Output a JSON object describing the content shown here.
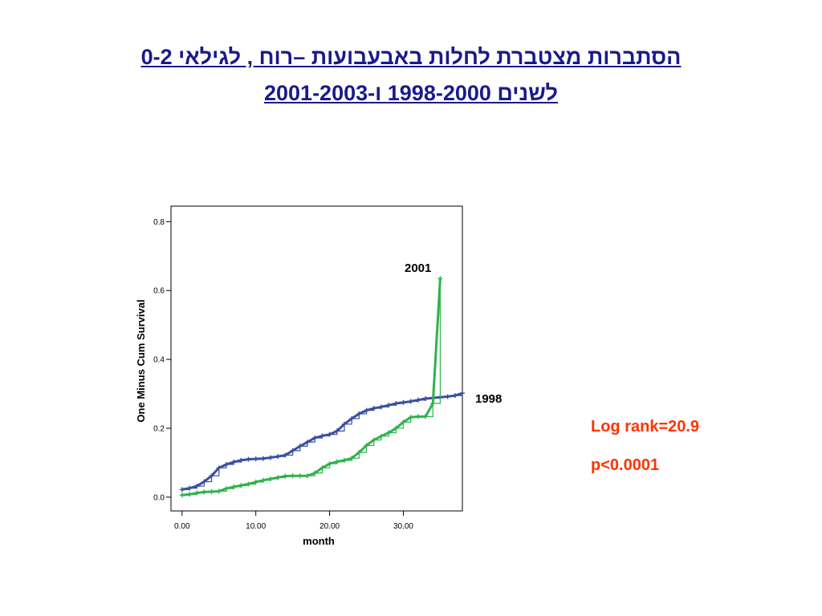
{
  "slide": {
    "title_line1": "הסתברות מצטברת לחלות באבעבועות –רוח , לגילאי 0-2",
    "title_line2": "לשנים 1998-2000 ו-2001-2003 "
  },
  "stats": {
    "log_rank": "Log rank=20.9",
    "p_value": "p<0.0001"
  },
  "colors": {
    "series_1998": "#3a4fa0",
    "series_2001": "#2db34a",
    "title": "#1a1a8c",
    "stats": "#ff3300"
  },
  "chart_data": {
    "type": "line",
    "title": "",
    "xlabel": "month",
    "ylabel": "One Minus Cum Survival",
    "xlim": [
      -1.5,
      38
    ],
    "ylim": [
      -0.04,
      0.845
    ],
    "xticks": [
      0,
      10,
      20,
      30
    ],
    "xtick_labels": [
      "0.00",
      "10.00",
      "20.00",
      "30.00"
    ],
    "yticks": [
      0.0,
      0.2,
      0.4,
      0.6,
      0.8
    ],
    "ytick_labels": [
      "0.0",
      "0.2",
      "0.4",
      "0.6",
      "0.8"
    ],
    "grid": false,
    "legend": "none",
    "series": [
      {
        "name": "1998",
        "x": [
          0,
          1,
          2,
          3,
          4,
          5,
          6,
          7,
          8,
          9,
          10,
          11,
          12,
          13,
          14,
          15,
          16,
          17,
          18,
          19,
          20,
          21,
          22,
          23,
          24,
          25,
          26,
          27,
          28,
          29,
          30,
          31,
          32,
          33,
          34,
          35,
          36,
          37,
          38
        ],
        "y": [
          0.022,
          0.026,
          0.032,
          0.045,
          0.062,
          0.085,
          0.095,
          0.102,
          0.107,
          0.11,
          0.111,
          0.112,
          0.115,
          0.118,
          0.122,
          0.135,
          0.148,
          0.16,
          0.172,
          0.178,
          0.182,
          0.192,
          0.212,
          0.228,
          0.242,
          0.252,
          0.258,
          0.262,
          0.267,
          0.272,
          0.275,
          0.278,
          0.282,
          0.286,
          0.288,
          0.29,
          0.292,
          0.295,
          0.302
        ]
      },
      {
        "name": "2001",
        "x": [
          0,
          1,
          2,
          3,
          4,
          5,
          6,
          7,
          8,
          9,
          10,
          11,
          12,
          13,
          14,
          15,
          16,
          17,
          18,
          19,
          20,
          21,
          22,
          23,
          24,
          25,
          26,
          27,
          28,
          29,
          30,
          31,
          32,
          33,
          34,
          35
        ],
        "y": [
          0.006,
          0.008,
          0.012,
          0.015,
          0.016,
          0.017,
          0.025,
          0.03,
          0.034,
          0.038,
          0.044,
          0.049,
          0.053,
          0.057,
          0.061,
          0.062,
          0.062,
          0.062,
          0.07,
          0.085,
          0.097,
          0.103,
          0.107,
          0.113,
          0.13,
          0.15,
          0.166,
          0.177,
          0.187,
          0.2,
          0.218,
          0.232,
          0.234,
          0.234,
          0.272,
          0.635
        ]
      }
    ],
    "annotations": [
      {
        "text": "2001",
        "series": "2001"
      },
      {
        "text": "1998",
        "series": "1998"
      }
    ]
  }
}
